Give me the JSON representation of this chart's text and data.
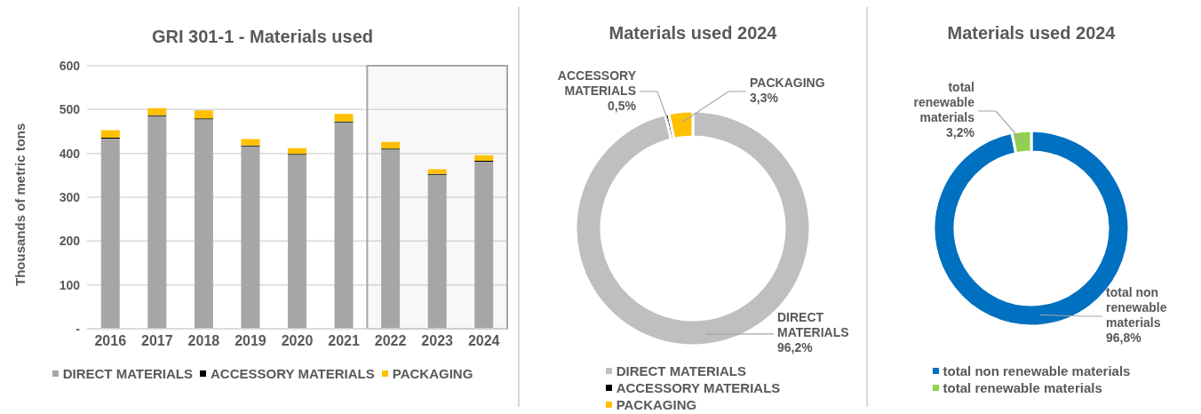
{
  "chart_data": [
    {
      "type": "bar",
      "title": "GRI 301-1 - Materials used",
      "ylabel": "Thousands of metric tons",
      "categories": [
        "2016",
        "2017",
        "2018",
        "2019",
        "2020",
        "2021",
        "2022",
        "2023",
        "2024"
      ],
      "stacked": true,
      "series": [
        {
          "name": "DIRECT MATERIALS",
          "color": "#a6a6a6",
          "values": [
            434,
            485,
            478,
            416,
            397,
            471,
            409,
            351,
            381
          ]
        },
        {
          "name": "ACCESSORY MATERIALS",
          "color": "#000000",
          "values": [
            2,
            2,
            2,
            2,
            2,
            2,
            2,
            2,
            2
          ]
        },
        {
          "name": "PACKAGING",
          "color": "#ffc000",
          "values": [
            17,
            16,
            18,
            15,
            13,
            17,
            15,
            11,
            13
          ]
        }
      ],
      "ylim": [
        0,
        600
      ],
      "yticks": [
        {
          "value": 0,
          "label": "-"
        },
        100,
        200,
        300,
        400,
        500,
        600
      ],
      "grid": "y",
      "legend": "bottom",
      "bands": [
        {
          "axis": "x",
          "from": "2022",
          "to": "2024",
          "color": "#a6a6a6"
        }
      ]
    },
    {
      "type": "donut",
      "title": "Materials used 2024",
      "categories": [
        "DIRECT MATERIALS",
        "ACCESSORY MATERIALS",
        "PACKAGING"
      ],
      "values": [
        96.2,
        0.5,
        3.3
      ],
      "colors": [
        "#bfbfbf",
        "#000000",
        "#ffc000"
      ],
      "value_labels": [
        "96,2%",
        "0,5%",
        "3,3%"
      ],
      "legend": "bottom"
    },
    {
      "type": "donut",
      "title": "Materials used 2024",
      "categories": [
        "total non renewable materials",
        "total renewable materials"
      ],
      "values": [
        96.8,
        3.2
      ],
      "colors": [
        "#0070c0",
        "#92d050"
      ],
      "value_labels": [
        "96,8%",
        "3,2%"
      ],
      "legend": "bottom"
    }
  ]
}
